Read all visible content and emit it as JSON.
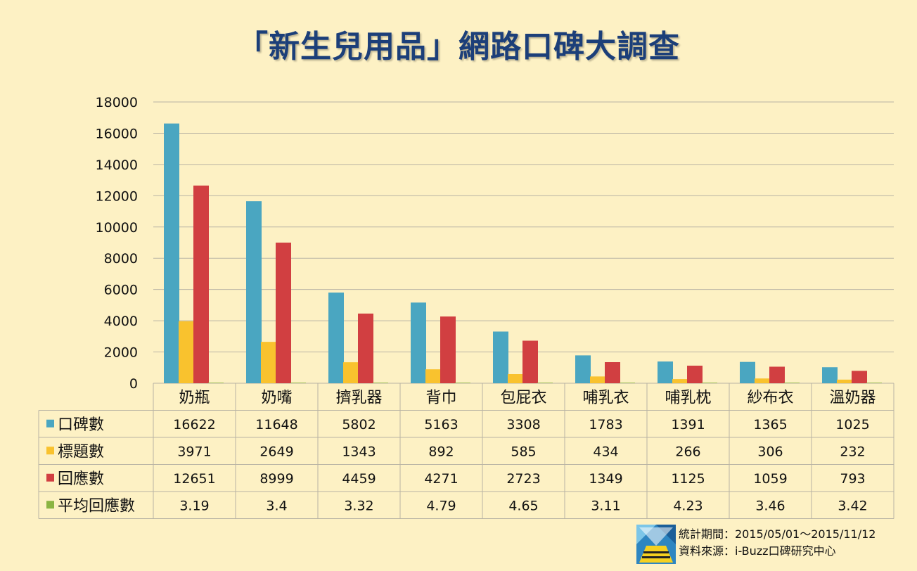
{
  "title": "「新生兒用品」網路口碑大調查",
  "footer": {
    "period": "統計期間：2015/05/01～2015/11/12",
    "source": "資料來源：i-Buzz口碑研究中心"
  },
  "chart_data": {
    "type": "bar",
    "title": "「新生兒用品」網路口碑大調查",
    "categories": [
      "奶瓶",
      "奶嘴",
      "擠乳器",
      "背巾",
      "包屁衣",
      "哺乳衣",
      "哺乳枕",
      "紗布衣",
      "溫奶器"
    ],
    "series": [
      {
        "name": "口碑數",
        "color": "#4aa6c1",
        "values": [
          16622,
          11648,
          5802,
          5163,
          3308,
          1783,
          1391,
          1365,
          1025
        ],
        "labels": [
          "16622",
          "11648",
          "5802",
          "5163",
          "3308",
          "1783",
          "1391",
          "1365",
          "1025"
        ]
      },
      {
        "name": "標題數",
        "color": "#f9c22e",
        "values": [
          3971,
          2649,
          1343,
          892,
          585,
          434,
          266,
          306,
          232
        ],
        "labels": [
          "3971",
          "2649",
          "1343",
          "892",
          "585",
          "434",
          "266",
          "306",
          "232"
        ]
      },
      {
        "name": "回應數",
        "color": "#d13f41",
        "values": [
          12651,
          8999,
          4459,
          4271,
          2723,
          1349,
          1125,
          1059,
          793
        ],
        "labels": [
          "12651",
          "8999",
          "4459",
          "4271",
          "2723",
          "1349",
          "1125",
          "1059",
          "793"
        ]
      },
      {
        "name": "平均回應數",
        "color": "#8ab442",
        "values": [
          3.19,
          3.4,
          3.32,
          4.79,
          4.65,
          3.11,
          4.23,
          3.46,
          3.42
        ],
        "labels": [
          "3.19",
          "3.4",
          "3.32",
          "4.79",
          "4.65",
          "3.11",
          "4.23",
          "3.46",
          "3.42"
        ]
      }
    ],
    "yticks": [
      "0",
      "2000",
      "4000",
      "6000",
      "8000",
      "10000",
      "12000",
      "14000",
      "16000",
      "18000"
    ],
    "ylim": [
      0,
      18000
    ],
    "grid": true,
    "legend": "data-table"
  }
}
